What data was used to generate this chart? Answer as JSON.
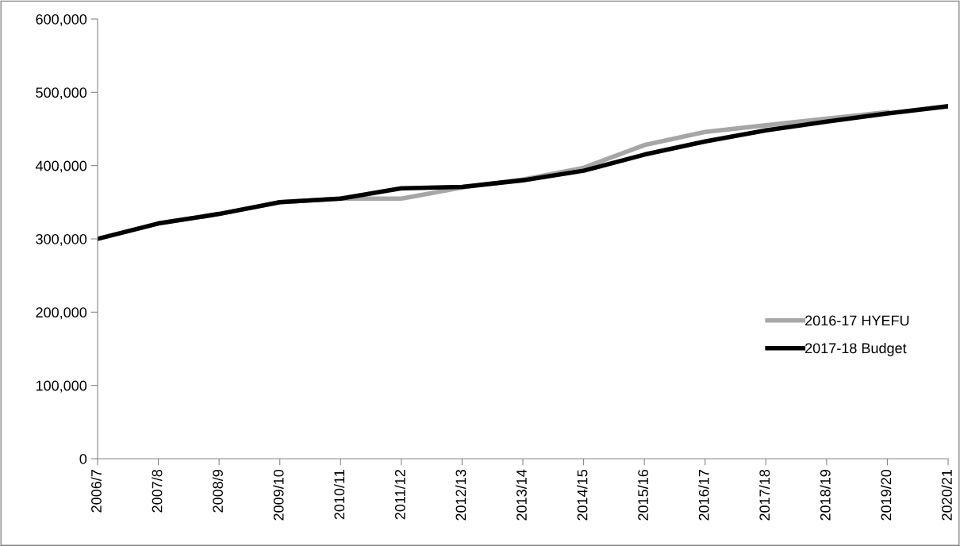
{
  "chart_data": {
    "type": "line",
    "categories": [
      "2006/7",
      "2007/8",
      "2008/9",
      "2009/10",
      "2010/11",
      "2011/12",
      "2012/13",
      "2013/14",
      "2014/15",
      "2015/16",
      "2016/17",
      "2017/18",
      "2018/19",
      "2019/20",
      "2020/21"
    ],
    "series": [
      {
        "name": "2016-17 HYEFU",
        "color": "#a6a6a6",
        "values": [
          300000,
          321000,
          334000,
          350000,
          355000,
          355000,
          370000,
          381000,
          397000,
          428000,
          446000,
          455000,
          464000,
          473000,
          null
        ]
      },
      {
        "name": "2017-18 Budget",
        "color": "#000000",
        "values": [
          300000,
          321000,
          334000,
          350000,
          355000,
          369000,
          371000,
          380000,
          393000,
          415000,
          433000,
          448000,
          460000,
          471000,
          481000
        ]
      }
    ],
    "ylim": [
      0,
      600000
    ],
    "yticks": [
      {
        "value": 0,
        "label": "0"
      },
      {
        "value": 100000,
        "label": "100,000"
      },
      {
        "value": 200000,
        "label": "200,000"
      },
      {
        "value": 300000,
        "label": "300,000"
      },
      {
        "value": 400000,
        "label": "400,000"
      },
      {
        "value": 500000,
        "label": "500,000"
      },
      {
        "value": 600000,
        "label": "600,000"
      }
    ],
    "grid": false,
    "legend": "right",
    "marker": "none",
    "line_style": "solid"
  }
}
